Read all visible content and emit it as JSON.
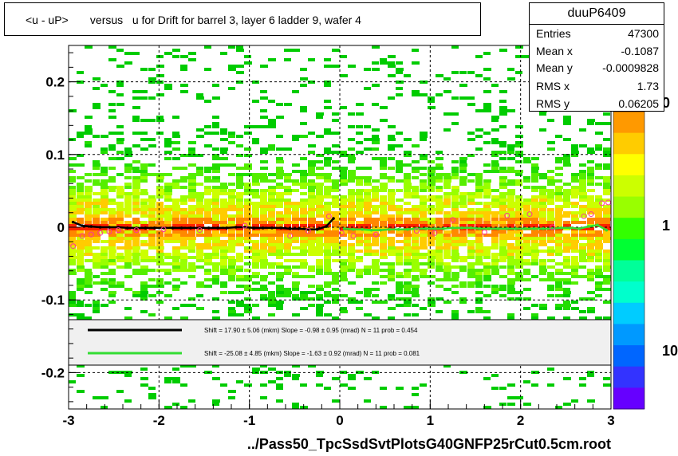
{
  "title": "<u - uP>       versus   u for Drift for barrel 3, layer 6 ladder 9, wafer 4",
  "stats": {
    "name": "duuP6409",
    "rows": [
      {
        "label": "Entries",
        "value": "47300"
      },
      {
        "label": "Mean x",
        "value": "-0.1087"
      },
      {
        "label": "Mean y",
        "value": "-0.0009828"
      },
      {
        "label": "RMS x",
        "value": "1.73"
      },
      {
        "label": "RMS y",
        "value": "0.06205"
      }
    ]
  },
  "footer": "../Pass50_TpcSsdSvtPlotsG40GNFP25rCut0.5cm.root",
  "colors": {
    "fit_black": "#000000",
    "fit_green": "#33dd33",
    "marker": "#ff3399",
    "palette": [
      "#ff9900",
      "#ffcc00",
      "#ffff00",
      "#ccff00",
      "#99ff00",
      "#33ff00",
      "#00ff33",
      "#00ff99",
      "#00ffcc",
      "#00ccff",
      "#0099ff",
      "#0066ff",
      "#3333ff",
      "#6600ff"
    ]
  },
  "legend": [
    {
      "text": "Shift =    17.90 ± 5.06 (mkm) Slope =    -0.98 ± 0.95 (mrad)  N = 11 prob = 0.454",
      "color": "#000000"
    },
    {
      "text": "Shift =   -25.08 ± 4.85 (mkm) Slope =    -1.63 ± 0.92 (mrad)  N = 11 prob = 0.081",
      "color": "#33dd33"
    }
  ],
  "chart_data": {
    "type": "heatmap",
    "xlim": [
      -3,
      3
    ],
    "ylim": [
      -0.25,
      0.25
    ],
    "x_ticks": [
      -3,
      -2,
      -1,
      0,
      1,
      2,
      3
    ],
    "y_ticks": [
      -0.2,
      -0.1,
      0,
      0.1,
      0.2
    ],
    "x_tick_labels": [
      "-3",
      "-2",
      "-1",
      "0",
      "1",
      "2",
      "3"
    ],
    "y_tick_labels": [
      "-0.2",
      "-0.1",
      "0",
      "0.1",
      "0.2"
    ],
    "colorbar_labels": [
      "10",
      "1",
      "0"
    ],
    "grid": true,
    "series": [
      {
        "x": [
          -2.95,
          -2.85,
          -2.75,
          -2.65,
          -2.55,
          -2.45,
          -2.35,
          -2.25,
          -2.15,
          -2.05,
          -1.95,
          -1.85,
          -1.75,
          -1.65,
          -1.55,
          -1.45,
          -1.35,
          -1.25,
          -1.15,
          -1.05,
          -0.95,
          -0.85,
          -0.75,
          -0.65,
          -0.55,
          -0.45,
          -0.35,
          -0.25,
          -0.15,
          -0.07
        ],
        "y": [
          0.007,
          0.002,
          0.001,
          0.0,
          0.0,
          0.0,
          -0.001,
          -0.001,
          -0.001,
          -0.001,
          -0.001,
          -0.001,
          -0.001,
          -0.001,
          -0.001,
          -0.001,
          -0.001,
          -0.001,
          0.0,
          0.0,
          -0.001,
          -0.001,
          -0.001,
          -0.001,
          -0.002,
          -0.002,
          -0.003,
          -0.003,
          0.001,
          0.012
        ]
      },
      {
        "x": [
          0.05,
          0.15,
          0.25,
          0.35,
          0.45,
          0.55,
          0.65,
          0.75,
          0.85,
          0.95,
          1.05,
          1.15,
          1.25,
          1.35,
          1.45,
          1.55,
          1.65,
          1.75,
          1.85,
          1.95,
          2.05,
          2.15,
          2.25,
          2.35,
          2.45,
          2.55,
          2.65,
          2.75,
          2.85,
          2.95
        ],
        "y": [
          -0.002,
          -0.003,
          -0.003,
          -0.004,
          -0.004,
          -0.003,
          -0.003,
          -0.003,
          -0.002,
          -0.002,
          -0.002,
          -0.002,
          -0.001,
          -0.001,
          -0.001,
          -0.002,
          -0.002,
          -0.002,
          -0.002,
          -0.002,
          -0.002,
          -0.002,
          -0.002,
          -0.002,
          -0.001,
          -0.001,
          -0.002,
          0.001,
          0.003,
          -0.004
        ]
      }
    ],
    "markers": [
      {
        "x": -2.95,
        "y": -0.026
      },
      {
        "x": -2.85,
        "y": -0.012
      },
      {
        "x": -2.75,
        "y": -0.01
      },
      {
        "x": -2.65,
        "y": -0.008
      },
      {
        "x": -2.55,
        "y": -0.006
      },
      {
        "x": -2.45,
        "y": -0.004
      },
      {
        "x": -2.25,
        "y": -0.004
      },
      {
        "x": -1.95,
        "y": -0.003
      },
      {
        "x": -1.55,
        "y": -0.004
      },
      {
        "x": -1.05,
        "y": 0.002
      },
      {
        "x": -0.55,
        "y": -0.012
      },
      {
        "x": -0.35,
        "y": -0.005
      },
      {
        "x": -0.12,
        "y": 0.015
      },
      {
        "x": 0.02,
        "y": -0.008
      },
      {
        "x": 0.15,
        "y": -0.012
      },
      {
        "x": 0.4,
        "y": -0.01
      },
      {
        "x": 0.85,
        "y": -0.005
      },
      {
        "x": 1.05,
        "y": -0.008
      },
      {
        "x": 1.25,
        "y": 0.01
      },
      {
        "x": 1.6,
        "y": -0.007
      },
      {
        "x": 1.85,
        "y": 0.016
      },
      {
        "x": 2.1,
        "y": 0.018
      },
      {
        "x": 2.35,
        "y": 0.0
      },
      {
        "x": 2.7,
        "y": 0.015
      },
      {
        "x": 2.78,
        "y": 0.018
      },
      {
        "x": 2.9,
        "y": 0.033
      },
      {
        "x": 2.97,
        "y": 0.034
      }
    ]
  }
}
